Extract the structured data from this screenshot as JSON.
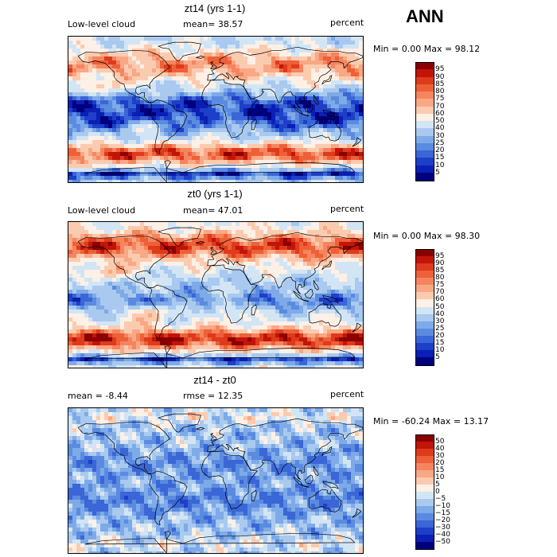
{
  "season": "ANN",
  "panels": [
    {
      "title": "zt14 (yrs 1-1)",
      "left_label": "Low-level cloud",
      "center_label": "mean=  38.57",
      "right_label": "percent",
      "minmax": "Min =    0.00 Max =   98.12",
      "levels": [
        "95",
        "90",
        "85",
        "80",
        "75",
        "70",
        "60",
        "50",
        "40",
        "30",
        "25",
        "20",
        "15",
        "10",
        "5"
      ],
      "colors": [
        "#8b0000",
        "#c1150a",
        "#de3a1c",
        "#ee6038",
        "#f5855f",
        "#f8a885",
        "#fbcbb0",
        "#fdf0e6",
        "#d2e5f5",
        "#a9c9ef",
        "#7eaae8",
        "#5b8be0",
        "#3a66d6",
        "#1e3fc7",
        "#0a1fb5",
        "#00007d"
      ],
      "mean": 38.57,
      "min": 0.0,
      "max": 98.12
    },
    {
      "title": "zt0 (yrs 1-1)",
      "left_label": "Low-level cloud",
      "center_label": "mean=  47.01",
      "right_label": "percent",
      "minmax": "Min =    0.00 Max =   98.30",
      "levels": [
        "95",
        "90",
        "85",
        "80",
        "75",
        "70",
        "60",
        "50",
        "40",
        "30",
        "25",
        "20",
        "15",
        "10",
        "5"
      ],
      "colors": [
        "#8b0000",
        "#c1150a",
        "#de3a1c",
        "#ee6038",
        "#f5855f",
        "#f8a885",
        "#fbcbb0",
        "#fdf0e6",
        "#d2e5f5",
        "#a9c9ef",
        "#7eaae8",
        "#5b8be0",
        "#3a66d6",
        "#1e3fc7",
        "#0a1fb5",
        "#00007d"
      ],
      "mean": 47.01,
      "min": 0.0,
      "max": 98.3
    },
    {
      "title": "zt14 - zt0",
      "left_label": "mean =   -8.44",
      "center_label": "rmse =  12.35",
      "right_label": "percent",
      "minmax": "Min = -60.24 Max =  13.17",
      "levels": [
        "50",
        "40",
        "30",
        "20",
        "15",
        "10",
        "5",
        "0",
        "−5",
        "−10",
        "−15",
        "−20",
        "−30",
        "−40",
        "−50"
      ],
      "colors": [
        "#8b0000",
        "#c1150a",
        "#de3a1c",
        "#ee6038",
        "#f5855f",
        "#f8a885",
        "#fbcbb0",
        "#fdf0e6",
        "#d2e5f5",
        "#a9c9ef",
        "#7eaae8",
        "#5b8be0",
        "#3a66d6",
        "#1e3fc7",
        "#0a1fb5",
        "#00007d"
      ],
      "mean": -8.44,
      "rmse": 12.35,
      "min": -60.24,
      "max": 13.17
    }
  ]
}
